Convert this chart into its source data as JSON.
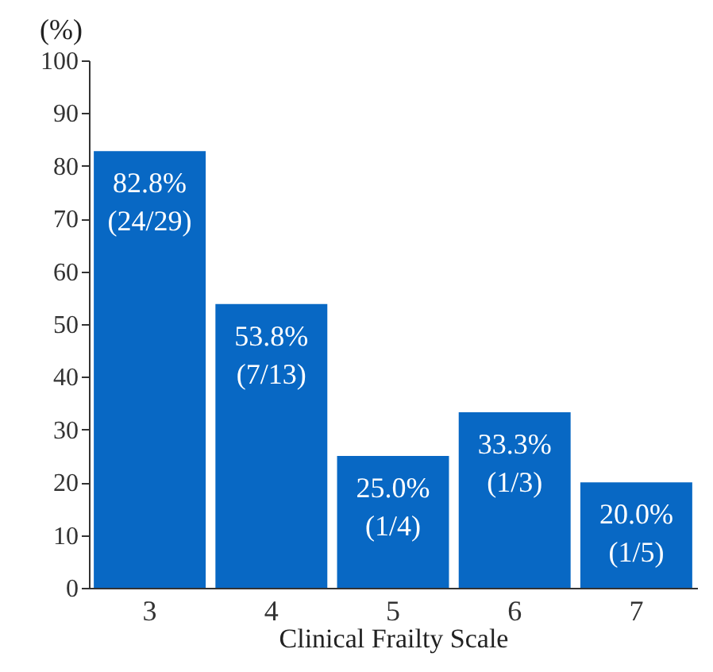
{
  "chart_data": {
    "type": "bar",
    "xlabel": "Clinical Frailty Scale",
    "ylabel": "(%)",
    "categories": [
      "3",
      "4",
      "5",
      "6",
      "7"
    ],
    "values": [
      82.8,
      53.8,
      25.0,
      33.3,
      20.0
    ],
    "value_labels": [
      "82.8%\n(24/29)",
      "53.8%\n(7/13)",
      "25.0%\n(1/4)",
      "33.3%\n(1/3)",
      "20.0%\n(1/5)"
    ],
    "color": "#0868c4",
    "ylim": [
      0,
      100
    ],
    "yticks": [
      0,
      10,
      20,
      30,
      40,
      50,
      60,
      70,
      80,
      90,
      100
    ],
    "grid": false
  }
}
